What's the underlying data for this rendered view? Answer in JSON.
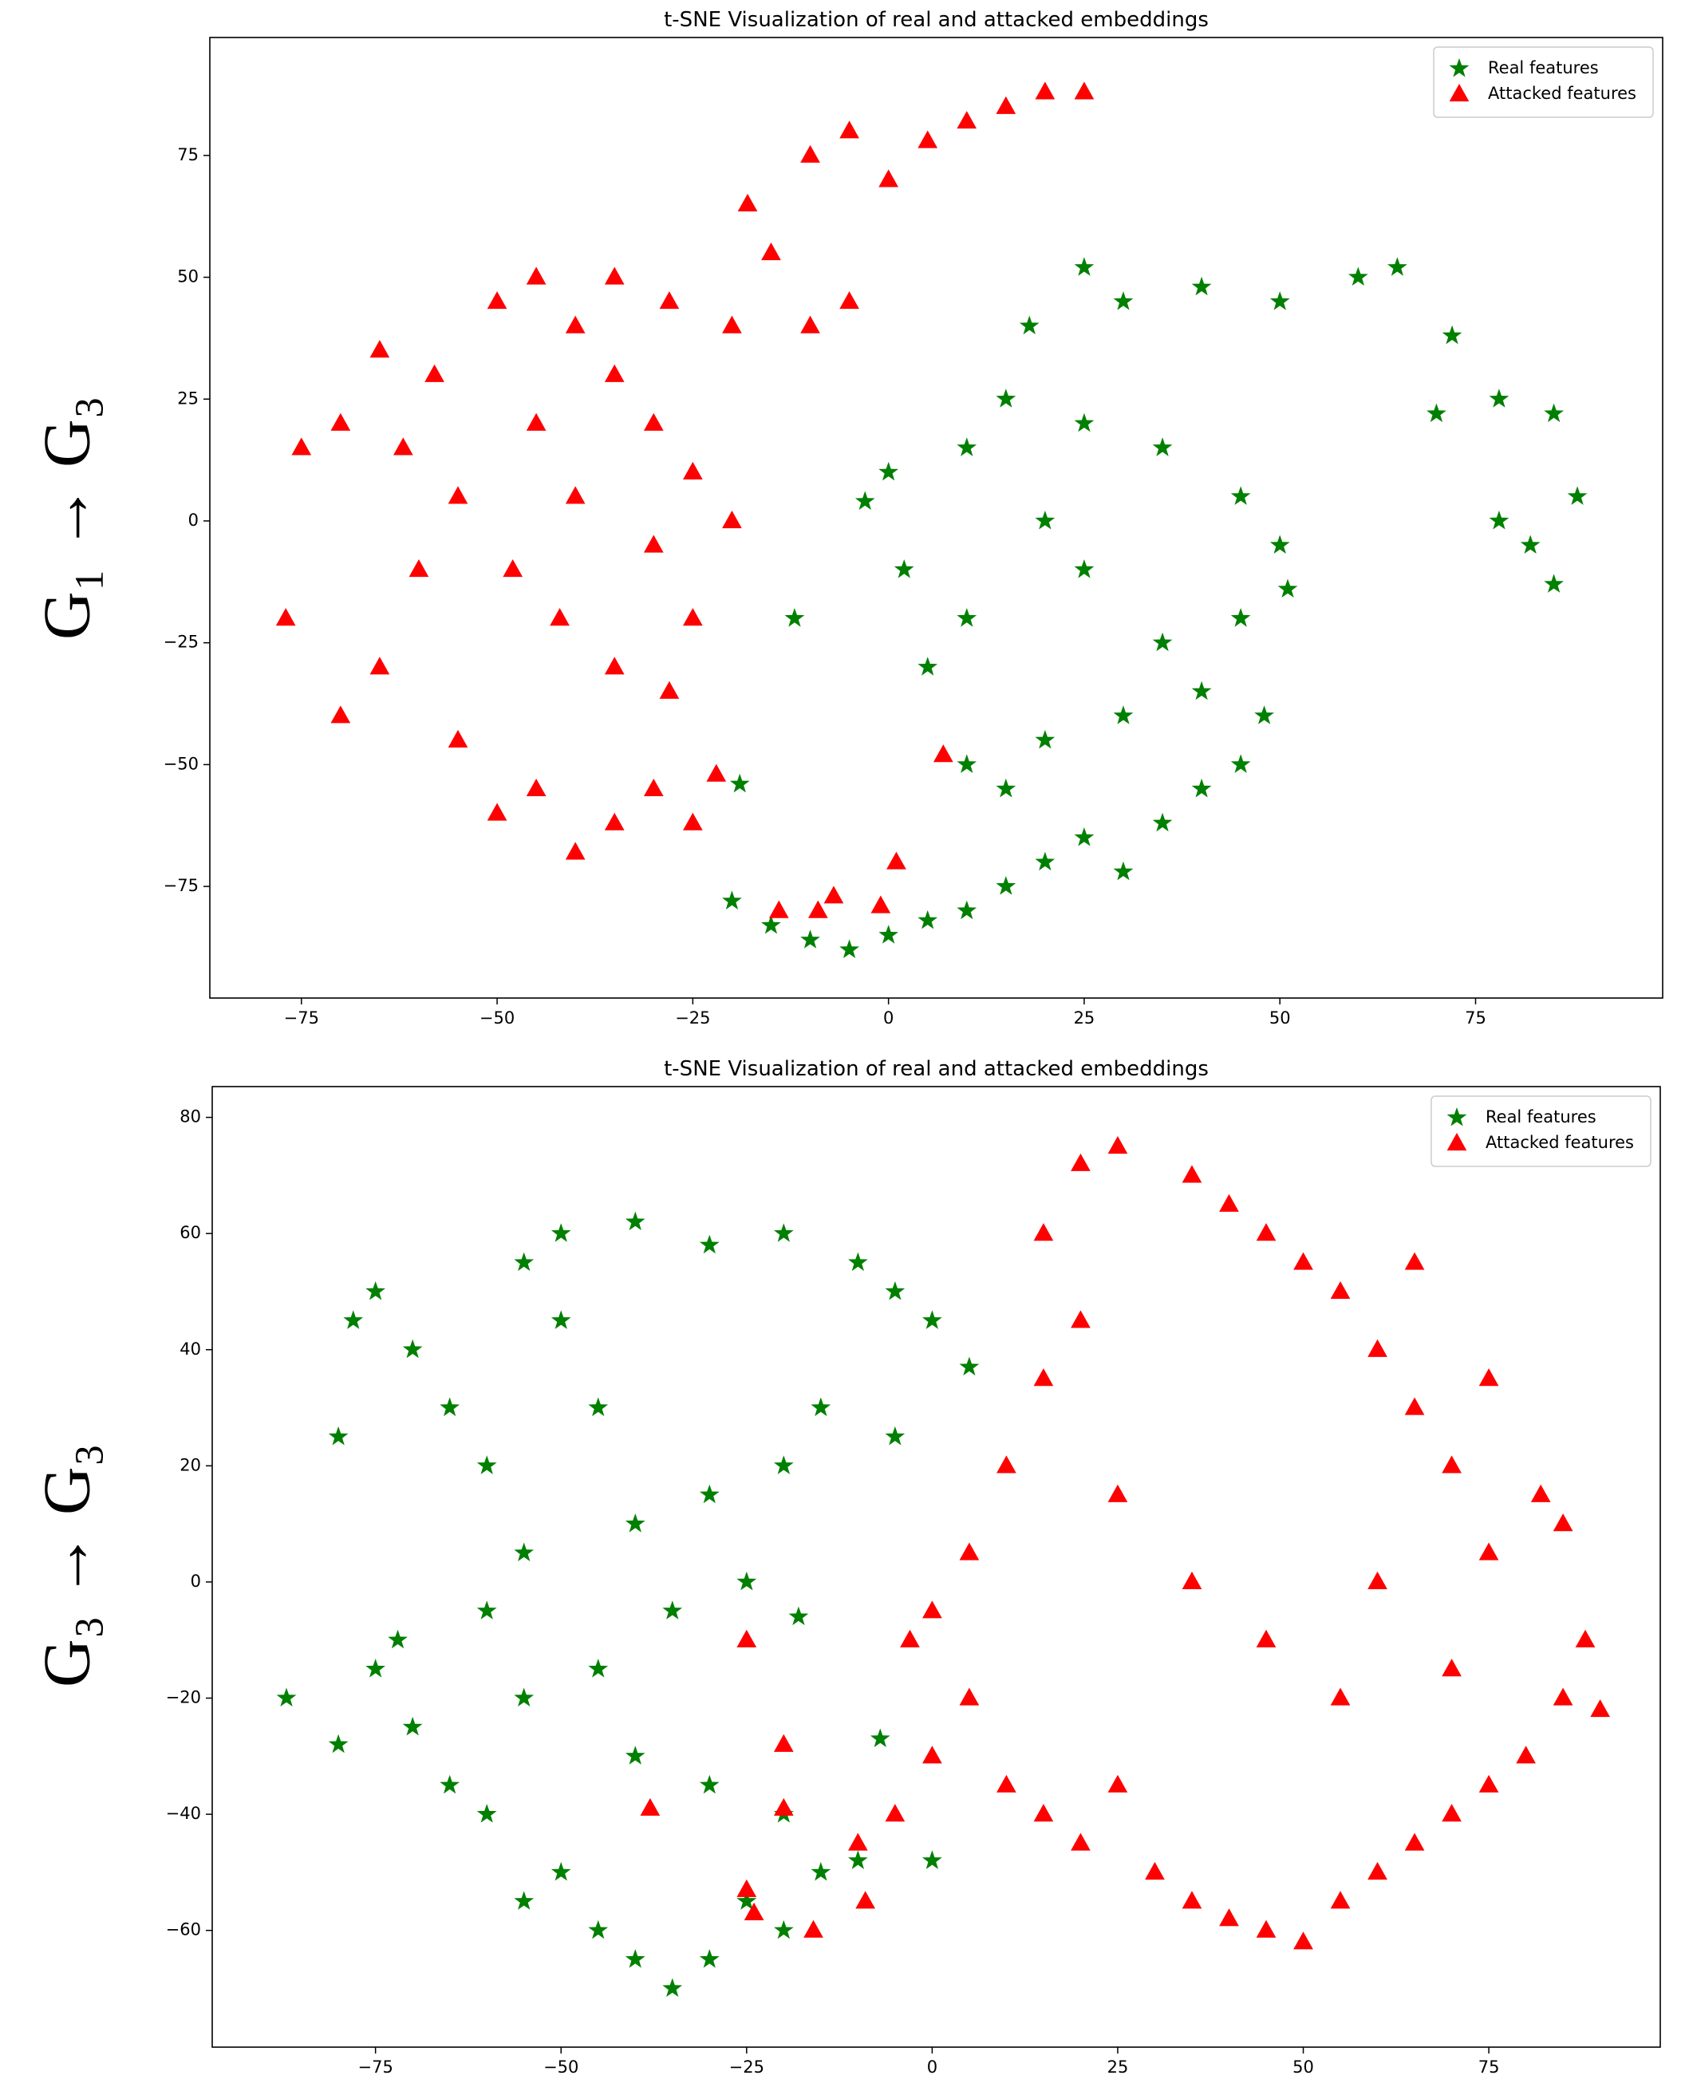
{
  "chart_data": [
    {
      "type": "scatter",
      "title": "t-SNE Visualization of real and attacked embeddings",
      "ylabel": "G₁ → G₃",
      "xlim": [
        -86.7,
        98.9
      ],
      "ylim": [
        -97.9,
        99.2
      ],
      "xticks": [
        {
          "value": -75,
          "label": "−75"
        },
        {
          "value": -50,
          "label": "−50"
        },
        {
          "value": -25,
          "label": "−25"
        },
        0,
        25,
        50,
        75
      ],
      "yticks": [
        {
          "value": -75,
          "label": "−75"
        },
        {
          "value": -50,
          "label": "−50"
        },
        {
          "value": -25,
          "label": "−25"
        },
        0,
        25,
        50,
        75
      ],
      "legend": "upper right",
      "series": [
        {
          "name": "Real features",
          "color": "#008000",
          "marker": "star",
          "x": [
            -20,
            -15,
            -10,
            -5,
            0,
            5,
            10,
            15,
            20,
            25,
            30,
            35,
            40,
            45,
            48,
            40,
            30,
            20,
            15,
            10,
            5,
            10,
            2,
            -3,
            0,
            10,
            15,
            25,
            35,
            45,
            50,
            51,
            45,
            35,
            25,
            20,
            18,
            25,
            30,
            40,
            50,
            60,
            65,
            72,
            70,
            78,
            85,
            88,
            82,
            85,
            78,
            -12,
            -19
          ],
          "values": [
            -78,
            -83,
            -86,
            -88,
            -85,
            -82,
            -80,
            -75,
            -70,
            -65,
            -72,
            -62,
            -55,
            -50,
            -40,
            -35,
            -40,
            -45,
            -55,
            -50,
            -30,
            -20,
            -10,
            4,
            10,
            15,
            25,
            20,
            15,
            5,
            -5,
            -14,
            -20,
            -25,
            -10,
            0,
            40,
            52,
            45,
            48,
            45,
            50,
            52,
            38,
            22,
            25,
            22,
            5,
            -5,
            -13,
            0,
            -20,
            -54
          ]
        },
        {
          "name": "Attacked features",
          "color": "#ff0000",
          "marker": "triangle",
          "x": [
            -77,
            -70,
            -65,
            -60,
            -55,
            -50,
            -45,
            -40,
            -35,
            -30,
            -25,
            -22,
            -28,
            -35,
            -42,
            -48,
            -55,
            -62,
            -70,
            -75,
            -65,
            -58,
            -50,
            -45,
            -40,
            -35,
            -30,
            -25,
            -20,
            -25,
            -30,
            -40,
            -45,
            -35,
            -28,
            -20,
            -15,
            -18,
            -10,
            -5,
            0,
            5,
            10,
            15,
            20,
            25,
            -10,
            -5,
            -14,
            -9,
            -7,
            -1,
            1,
            7
          ],
          "values": [
            -20,
            -40,
            -30,
            -10,
            -45,
            -60,
            -55,
            -68,
            -62,
            -55,
            -62,
            -52,
            -35,
            -30,
            -20,
            -10,
            5,
            15,
            20,
            15,
            35,
            30,
            45,
            50,
            40,
            30,
            20,
            10,
            0,
            -20,
            -5,
            5,
            20,
            50,
            45,
            40,
            55,
            65,
            75,
            80,
            70,
            78,
            82,
            85,
            88,
            88,
            40,
            45,
            -80,
            -80,
            -77,
            -79,
            -70,
            -48
          ]
        }
      ]
    },
    {
      "type": "scatter",
      "title": "t-SNE Visualization of real and attacked embeddings",
      "ylabel": "G₃ → G₃",
      "xlim": [
        -97,
        98.1
      ],
      "ylim": [
        -80.1,
        85.3
      ],
      "xticks": [
        {
          "value": -75,
          "label": "−75"
        },
        {
          "value": -50,
          "label": "−50"
        },
        {
          "value": -25,
          "label": "−25"
        },
        0,
        25,
        50,
        75
      ],
      "yticks": [
        {
          "value": -60,
          "label": "−60"
        },
        {
          "value": -40,
          "label": "−40"
        },
        {
          "value": -20,
          "label": "−20"
        },
        0,
        20,
        40,
        60,
        80
      ],
      "legend": "upper right",
      "series": [
        {
          "name": "Real features",
          "color": "#008000",
          "marker": "star",
          "x": [
            -87,
            -80,
            -75,
            -70,
            -65,
            -72,
            -80,
            -78,
            -75,
            -70,
            -65,
            -60,
            -55,
            -60,
            -55,
            -60,
            -55,
            -50,
            -45,
            -40,
            -35,
            -30,
            -25,
            -20,
            -15,
            -10,
            -20,
            -30,
            -40,
            -45,
            -35,
            -25,
            -30,
            -40,
            -45,
            -50,
            -55,
            -50,
            -40,
            -30,
            -20,
            -10,
            -5,
            0,
            5,
            -5,
            -15,
            -20,
            -18,
            -7,
            0
          ],
          "values": [
            -20,
            -28,
            -15,
            -25,
            -35,
            -10,
            25,
            45,
            50,
            40,
            30,
            20,
            5,
            -5,
            -20,
            -40,
            -55,
            -50,
            -60,
            -65,
            -70,
            -65,
            -55,
            -60,
            -50,
            -48,
            -40,
            -35,
            -30,
            -15,
            -5,
            0,
            15,
            10,
            30,
            45,
            55,
            60,
            62,
            58,
            60,
            55,
            50,
            45,
            37,
            25,
            30,
            20,
            -6,
            -27,
            -48
          ]
        },
        {
          "name": "Attacked features",
          "color": "#ff0000",
          "marker": "triangle",
          "x": [
            -10,
            -5,
            0,
            -3,
            0,
            5,
            10,
            15,
            20,
            25,
            30,
            35,
            40,
            45,
            50,
            55,
            60,
            65,
            70,
            75,
            80,
            85,
            88,
            90,
            85,
            82,
            75,
            70,
            65,
            60,
            55,
            50,
            45,
            40,
            35,
            25,
            20,
            15,
            20,
            15,
            10,
            5,
            25,
            35,
            45,
            55,
            60,
            70,
            75,
            65,
            -38,
            -25,
            -20,
            -20,
            -25,
            -24,
            -16,
            -9
          ],
          "values": [
            -45,
            -40,
            -30,
            -10,
            -5,
            -20,
            -35,
            -40,
            -45,
            -35,
            -50,
            -55,
            -58,
            -60,
            -62,
            -55,
            -50,
            -45,
            -40,
            -35,
            -30,
            -20,
            -10,
            -22,
            10,
            15,
            5,
            20,
            30,
            40,
            50,
            55,
            60,
            65,
            70,
            75,
            72,
            60,
            45,
            35,
            20,
            5,
            15,
            0,
            -10,
            -20,
            0,
            -15,
            35,
            55,
            -39,
            -10,
            -28,
            -39,
            -53,
            -57,
            -60,
            -55
          ]
        }
      ]
    }
  ]
}
